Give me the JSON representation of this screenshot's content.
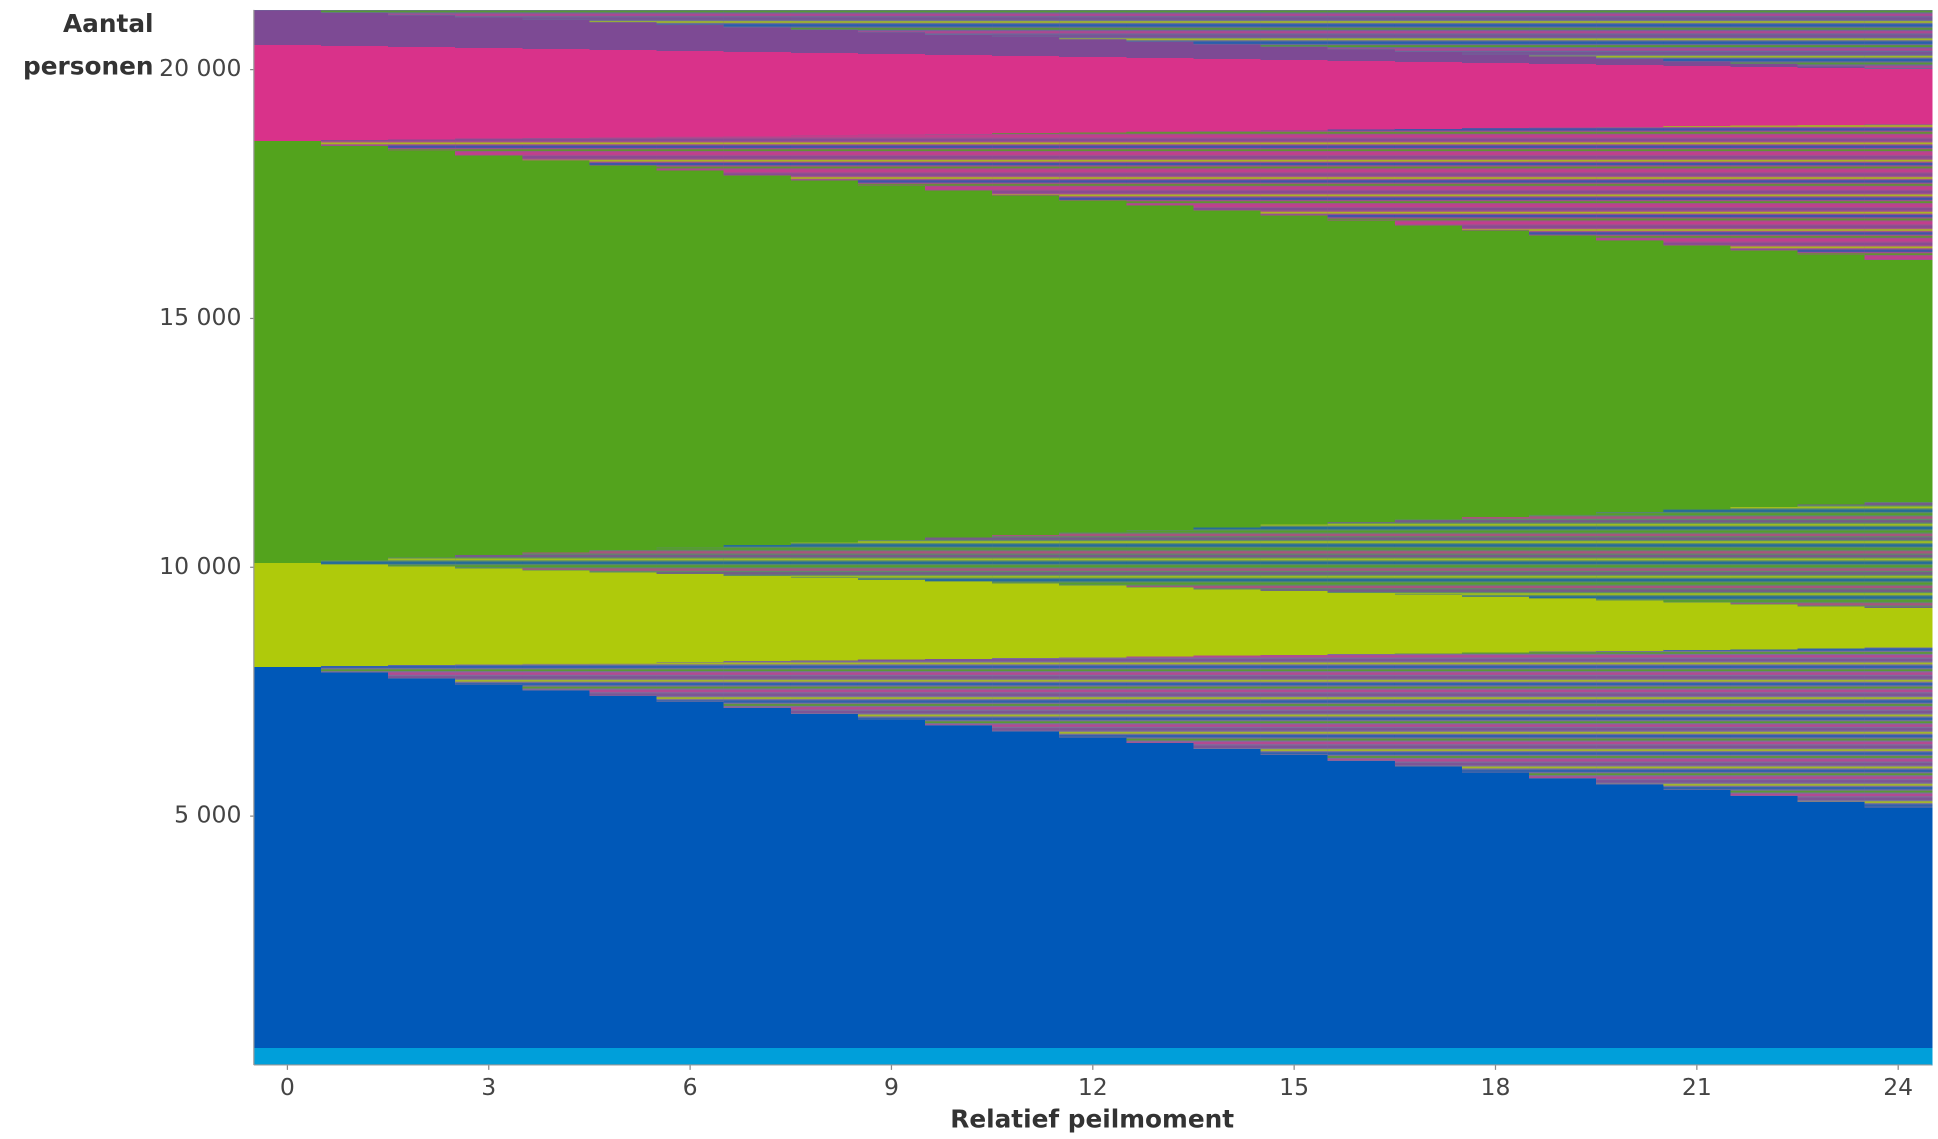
{
  "chart_data": {
    "type": "stacked-bar",
    "x_label": "Relatief peilmoment",
    "y_label": "Aantal personen",
    "x": [
      0,
      1,
      2,
      3,
      4,
      5,
      6,
      7,
      8,
      9,
      10,
      11,
      12,
      13,
      14,
      15,
      16,
      17,
      18,
      19,
      20,
      21,
      22,
      23,
      24
    ],
    "xlim": [
      -0.5,
      24.5
    ],
    "xticks": [
      0,
      3,
      6,
      9,
      12,
      15,
      18,
      21,
      24
    ],
    "ylim": [
      0,
      21200
    ],
    "yticks": [
      {
        "value": 5000,
        "label": "5 000"
      },
      {
        "value": 10000,
        "label": "10 000"
      },
      {
        "value": 15000,
        "label": "15 000"
      },
      {
        "value": 20000,
        "label": "20 000"
      }
    ],
    "series": [
      {
        "color": "#009fda",
        "pattern": false,
        "values": [
          350,
          350,
          350,
          350,
          350,
          350,
          350,
          350,
          350,
          350,
          350,
          350,
          350,
          350,
          350,
          350,
          350,
          350,
          350,
          350,
          350,
          350,
          350,
          350,
          350
        ]
      },
      {
        "color": "#0058b8",
        "pattern": false,
        "values": [
          7660,
          7542,
          7424,
          7306,
          7188,
          7070,
          6952,
          6834,
          6716,
          6598,
          6480,
          6362,
          6244,
          6126,
          6008,
          5890,
          5772,
          5654,
          5536,
          5418,
          5300,
          5182,
          5064,
          4946,
          4828
        ]
      },
      {
        "color": "#7b6f9c",
        "pattern": true,
        "values": [
          0,
          134,
          268,
          402,
          536,
          670,
          804,
          938,
          1072,
          1206,
          1340,
          1474,
          1608,
          1742,
          1876,
          2010,
          2144,
          2278,
          2412,
          2546,
          2680,
          2814,
          2948,
          3082,
          3216
        ]
      },
      {
        "color": "#afca0b",
        "pattern": false,
        "values": [
          2090,
          2036,
          1982,
          1928,
          1874,
          1820,
          1766,
          1712,
          1658,
          1604,
          1550,
          1496,
          1442,
          1388,
          1334,
          1280,
          1226,
          1172,
          1118,
          1064,
          1010,
          956,
          902,
          848,
          794
        ]
      },
      {
        "color": "#5e8a6a",
        "pattern": true,
        "values": [
          0,
          89,
          178,
          267,
          356,
          445,
          534,
          623,
          712,
          801,
          890,
          979,
          1068,
          1157,
          1246,
          1335,
          1424,
          1513,
          1602,
          1691,
          1780,
          1869,
          1958,
          2047,
          2136
        ]
      },
      {
        "color": "#53a31d",
        "pattern": false,
        "values": [
          8480,
          8329,
          8178,
          8027,
          7876,
          7725,
          7574,
          7423,
          7272,
          7121,
          6970,
          6819,
          6668,
          6517,
          6366,
          6215,
          6064,
          5913,
          5762,
          5611,
          5460,
          5309,
          5158,
          5007,
          4856
        ]
      },
      {
        "color": "#a2508e",
        "pattern": true,
        "values": [
          0,
          114,
          228,
          342,
          456,
          570,
          684,
          798,
          912,
          1026,
          1140,
          1254,
          1368,
          1482,
          1596,
          1710,
          1824,
          1938,
          2052,
          2166,
          2280,
          2394,
          2508,
          2622,
          2736
        ]
      },
      {
        "color": "#d9328a",
        "pattern": false,
        "values": [
          1920,
          1886,
          1852,
          1818,
          1784,
          1750,
          1716,
          1682,
          1648,
          1614,
          1580,
          1546,
          1512,
          1478,
          1444,
          1410,
          1376,
          1342,
          1308,
          1274,
          1240,
          1206,
          1172,
          1138,
          1104
        ]
      },
      {
        "color": "#7d4a94",
        "pattern": false,
        "values": [
          700,
          671,
          642,
          613,
          584,
          555,
          526,
          497,
          468,
          439,
          410,
          381,
          352,
          323,
          294,
          265,
          236,
          207,
          178,
          149,
          120,
          91,
          62,
          33,
          4
        ]
      },
      {
        "color": "#6a6a9a",
        "pattern": true,
        "values": [
          0,
          49,
          98,
          147,
          196,
          245,
          294,
          343,
          392,
          441,
          490,
          539,
          588,
          637,
          686,
          735,
          784,
          833,
          882,
          931,
          980,
          1029,
          1078,
          1127,
          1176
        ]
      }
    ]
  }
}
